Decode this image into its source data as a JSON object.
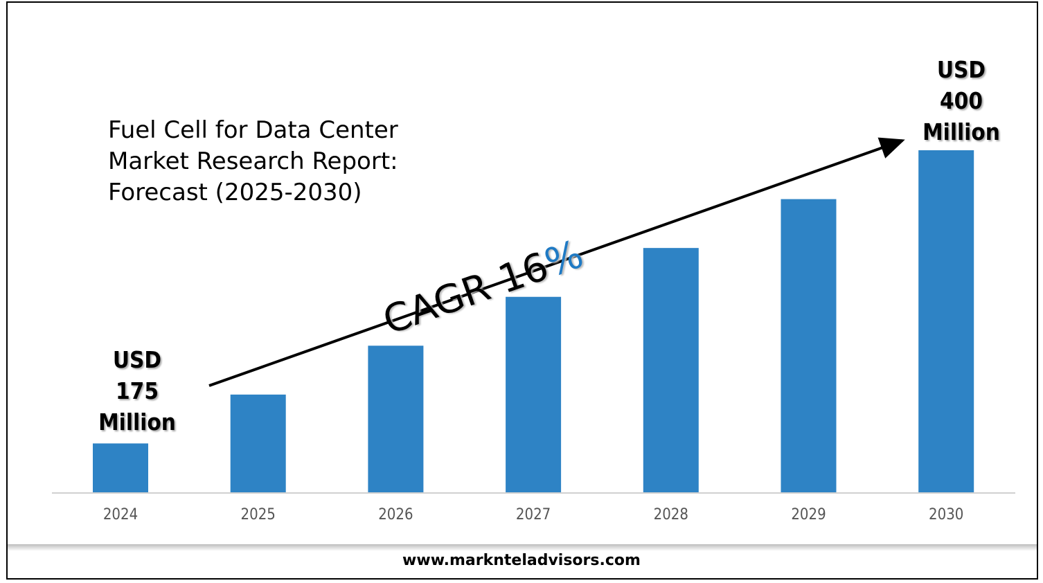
{
  "chart_data": {
    "type": "bar",
    "title": [
      "Fuel Cell for Data Center",
      "Market Research Report:",
      "Forecast (2025-2030)"
    ],
    "categories": [
      "2024",
      "2025",
      "2026",
      "2027",
      "2028",
      "2029",
      "2030"
    ],
    "values": [
      1,
      2,
      3,
      4,
      5,
      6,
      7
    ],
    "values_note": "relative bar heights (no y-axis shown)",
    "bar_color": "#2e83c5",
    "annotations": {
      "start": [
        "USD",
        "175",
        "Million"
      ],
      "end": [
        "USD",
        "400",
        "Million"
      ],
      "cagr_text": "CAGR 16",
      "cagr_pct": "%",
      "cagr_pct_color": "#1f7ac4"
    },
    "grid": false,
    "legend": "none"
  },
  "footer": {
    "website": "www.marknteladvisors.com"
  }
}
